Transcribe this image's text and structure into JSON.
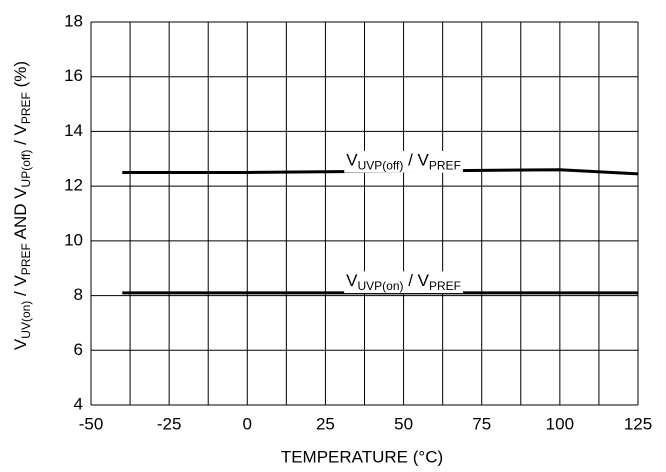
{
  "chart_data": {
    "type": "line",
    "x_label": "TEMPERATURE (°C)",
    "y_label_parts": [
      [
        "V",
        false
      ],
      [
        "UV(on)",
        true
      ],
      [
        " / V",
        false
      ],
      [
        "PREF",
        true
      ],
      [
        " AND V",
        false
      ],
      [
        "UP(off)",
        true
      ],
      [
        " / V",
        false
      ],
      [
        "PREF",
        true
      ],
      [
        " (%)",
        false
      ]
    ],
    "x": [
      -40,
      0,
      50,
      100,
      125
    ],
    "series": [
      {
        "color": "#000000",
        "values": [
          12.5,
          12.5,
          12.55,
          12.6,
          12.45
        ]
      },
      {
        "color": "#000000",
        "values": [
          8.1,
          8.1,
          8.1,
          8.1,
          8.1
        ]
      }
    ],
    "annotations": [
      {
        "x": 50,
        "y": 12.9,
        "parts": [
          [
            "V",
            false
          ],
          [
            "UVP(off)",
            true
          ],
          [
            " / V",
            false
          ],
          [
            "PREF",
            true
          ]
        ]
      },
      {
        "x": 50,
        "y": 8.5,
        "parts": [
          [
            "V",
            false
          ],
          [
            "UVP(on)",
            true
          ],
          [
            " / V",
            false
          ],
          [
            "PREF",
            true
          ]
        ]
      }
    ],
    "xlim": [
      -50,
      125
    ],
    "xticks": [
      -50,
      -25,
      0,
      25,
      50,
      75,
      100,
      125
    ],
    "ylim": [
      4,
      18
    ],
    "yticks": [
      4,
      6,
      8,
      10,
      12,
      14,
      16,
      18
    ],
    "grid": true
  }
}
